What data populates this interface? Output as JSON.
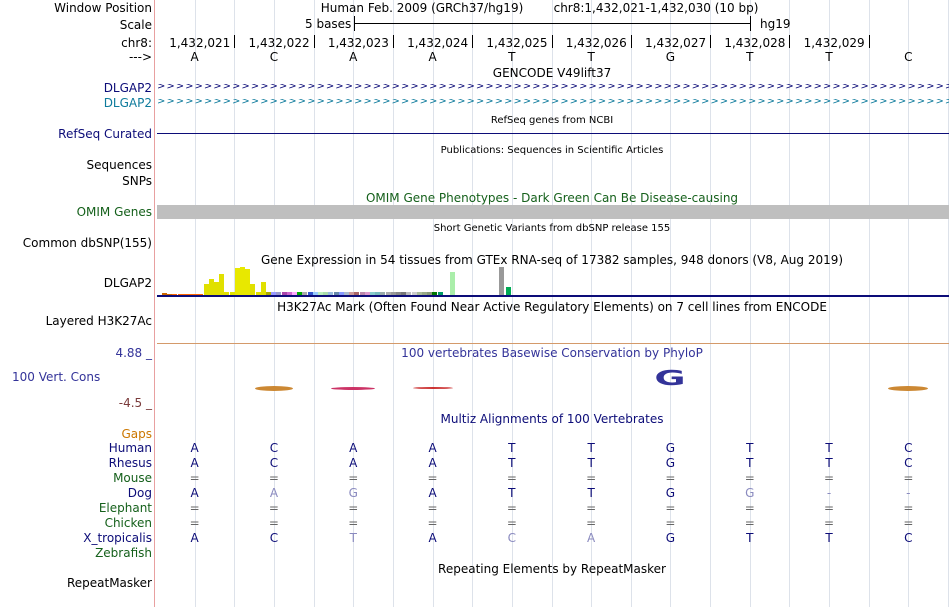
{
  "header": {
    "window_position_label": "Window Position",
    "assembly": "Human Feb. 2009 (GRCh37/hg19)",
    "position": "chr8:1,432,021-1,432,030 (10 bp)",
    "scale_label": "Scale",
    "scale_text": "5 bases",
    "scale_assembly": "hg19",
    "chrom_label": "chr8:",
    "strand_label": "--->"
  },
  "coords": [
    "1,432,021",
    "1,432,022",
    "1,432,023",
    "1,432,024",
    "1,432,025",
    "1,432,026",
    "1,432,027",
    "1,432,028",
    "1,432,029"
  ],
  "bases": [
    "A",
    "C",
    "A",
    "A",
    "T",
    "T",
    "G",
    "T",
    "T",
    "C"
  ],
  "tracks": {
    "gencode": {
      "title": "GENCODE V49lift37",
      "items": [
        "DLGAP2",
        "DLGAP2"
      ],
      "color1": "#0c0c78",
      "color2": "#0e7b9c"
    },
    "refseq": {
      "title": "RefSeq genes from NCBI",
      "label": "RefSeq Curated",
      "color": "#0c0c78"
    },
    "pubs": {
      "title": "Publications: Sequences in Scientific Articles",
      "label": "Sequences"
    },
    "snps": {
      "label": "SNPs"
    },
    "omim": {
      "title": "OMIM Gene Phenotypes - Dark Green Can Be Disease-causing",
      "label": "OMIM Genes",
      "color": "#15601b"
    },
    "dbsnp": {
      "title": "Short Genetic Variants from dbSNP release 155",
      "label": "Common dbSNP(155)"
    },
    "gtex": {
      "title": "Gene Expression in 54 tissues from GTEx RNA-seq of 17382 samples, 948 donors (V8, Aug 2019)",
      "label": "DLGAP2",
      "levels": [
        0.08,
        0.03,
        0.0,
        0.0,
        0.0,
        0.0,
        0.0,
        0.0,
        0.38,
        0.58,
        0.48,
        0.74,
        0.1,
        0.1,
        0.96,
        1.0,
        0.92,
        0.38,
        0.1,
        0.48,
        0.1,
        0.1,
        0.1,
        0.1,
        0.1,
        0.1,
        0.1,
        0.1,
        0.1,
        0.1,
        0.1,
        0.1,
        0.1,
        0.1,
        0.1,
        0.1,
        0.1,
        0.1,
        0.1,
        0.1,
        0.1,
        0.1,
        0.1,
        0.1,
        0.1,
        0.1,
        0.1,
        0.1,
        0.1,
        0.1,
        0.1,
        0.1,
        0.1,
        0.1
      ],
      "colors": [
        "#cc6600",
        "#cc6600",
        "#ff6600",
        "#ff6600",
        "#ff6600",
        "#ff6600",
        "#ff6600",
        "#ff6600",
        "#e0e000",
        "#e0e000",
        "#e0e000",
        "#e0e000",
        "#e0e000",
        "#e0e000",
        "#e8e800",
        "#e8e800",
        "#e8e800",
        "#e0e000",
        "#e0e000",
        "#e0e000",
        "#aaaa00",
        "#9999ff",
        "#9999cc",
        "#aa44aa",
        "#cc66cc",
        "#ffaaff",
        "#00aa00",
        "#aaaaaa",
        "#3355cc",
        "#99ccff",
        "#bbeebb",
        "#aaddaa",
        "#99bbdd",
        "#6688aa",
        "#8899ff",
        "#aabbcc",
        "#cc9999",
        "#aa6666",
        "#bb88aa",
        "#dd99cc",
        "#88cccc",
        "#77bbbb",
        "#99aaaa",
        "#aaaaaa",
        "#999999",
        "#888888",
        "#777777",
        "#bbbbbb",
        "#cccccc",
        "#aabb99",
        "#99aa88",
        "#889977",
        "#007700",
        "#009966"
      ],
      "extra_bars": [
        {
          "tissue": "highlight",
          "level": 0.82,
          "color": "#aaeeaa"
        },
        {
          "tissue": "grey",
          "level": 1.0,
          "color": "#999999"
        },
        {
          "tissue": "green",
          "level": 0.28,
          "color": "#00aa55"
        }
      ]
    },
    "h3k27ac": {
      "title": "H3K27Ac Mark (Often Found Near Active Regulatory Elements) on 7 cell lines from ENCODE",
      "label": "Layered H3K27Ac"
    },
    "phylop": {
      "title": "100 vertebrates Basewise Conservation by PhyloP",
      "label": "100 Vert. Cons",
      "max_label": "4.88 _",
      "min_label": "-4.5 _",
      "color": "#333399",
      "axis_color": "#7a3b3b"
    },
    "multiz": {
      "title": "Multiz Alignments of 100 Vertebrates",
      "gaps_label": "Gaps",
      "gaps_color": "#cc7700",
      "species": [
        {
          "name": "Human",
          "color": "#0c0c78",
          "seq": [
            "A",
            "C",
            "A",
            "A",
            "T",
            "T",
            "G",
            "T",
            "T",
            "C"
          ]
        },
        {
          "name": "Rhesus",
          "color": "#0c0c78",
          "seq": [
            "A",
            "C",
            "A",
            "A",
            "T",
            "T",
            "G",
            "T",
            "T",
            "C"
          ]
        },
        {
          "name": "Mouse",
          "color": "#15601b",
          "seq": [
            "=",
            "=",
            "=",
            "=",
            "=",
            "=",
            "=",
            "=",
            "=",
            "="
          ]
        },
        {
          "name": "Dog",
          "color": "#0c0c78",
          "seq": [
            "A",
            "A",
            "G",
            "A",
            "T",
            "T",
            "G",
            "G",
            "-",
            "-"
          ]
        },
        {
          "name": "Elephant",
          "color": "#15601b",
          "seq": [
            "=",
            "=",
            "=",
            "=",
            "=",
            "=",
            "=",
            "=",
            "=",
            "="
          ]
        },
        {
          "name": "Chicken",
          "color": "#15601b",
          "seq": [
            "=",
            "=",
            "=",
            "=",
            "=",
            "=",
            "=",
            "=",
            "=",
            "="
          ]
        },
        {
          "name": "X_tropicalis",
          "color": "#0c0c78",
          "seq": [
            "A",
            "C",
            "T",
            "A",
            "C",
            "A",
            "G",
            "T",
            "T",
            "C"
          ]
        },
        {
          "name": "Zebrafish",
          "color": "#15601b",
          "seq": []
        }
      ],
      "dim": [
        [],
        [],
        [],
        [
          1,
          2,
          7,
          8,
          9
        ],
        [],
        [],
        [
          2,
          4,
          5
        ],
        []
      ]
    },
    "rmsk": {
      "title": "Repeating Elements by RepeatMasker",
      "label": "RepeatMasker"
    }
  }
}
